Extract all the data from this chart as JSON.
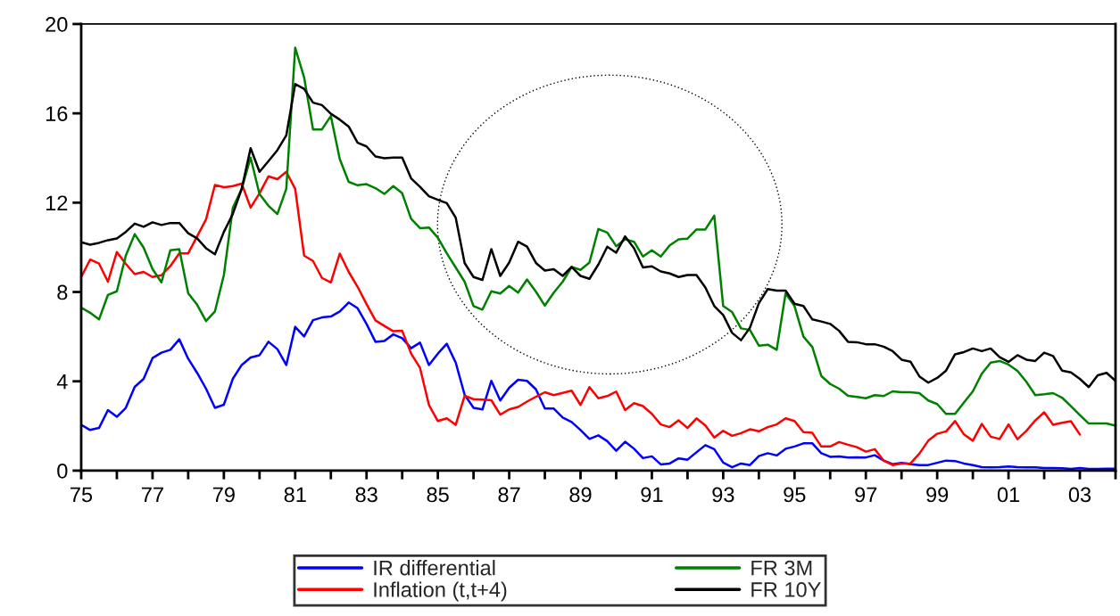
{
  "chart_data": {
    "type": "line",
    "x": [
      1975,
      1975.25,
      1975.5,
      1975.75,
      1976,
      1976.25,
      1976.5,
      1976.75,
      1977,
      1977.25,
      1977.5,
      1977.75,
      1978,
      1978.25,
      1978.5,
      1978.75,
      1979,
      1979.25,
      1979.5,
      1979.75,
      1980,
      1980.25,
      1980.5,
      1980.75,
      1981,
      1981.25,
      1981.5,
      1981.75,
      1982,
      1982.25,
      1982.5,
      1982.75,
      1983,
      1983.25,
      1983.5,
      1983.75,
      1984,
      1984.25,
      1984.5,
      1984.75,
      1985,
      1985.25,
      1985.5,
      1985.75,
      1986,
      1986.25,
      1986.5,
      1986.75,
      1987,
      1987.25,
      1987.5,
      1987.75,
      1988,
      1988.25,
      1988.5,
      1988.75,
      1989,
      1989.25,
      1989.5,
      1989.75,
      1990,
      1990.25,
      1990.5,
      1990.75,
      1991,
      1991.25,
      1991.5,
      1991.75,
      1992,
      1992.25,
      1992.5,
      1992.75,
      1993,
      1993.25,
      1993.5,
      1993.75,
      1994,
      1994.25,
      1994.5,
      1994.75,
      1995,
      1995.25,
      1995.5,
      1995.75,
      1996,
      1996.25,
      1996.5,
      1996.75,
      1997,
      1997.25,
      1997.5,
      1997.75,
      1998,
      1998.25,
      1998.5,
      1998.75,
      1999,
      1999.25,
      1999.5,
      1999.75,
      2000,
      2000.25,
      2000.5,
      2000.75,
      2001,
      2001.25,
      2001.5,
      2001.75,
      2002,
      2002.25,
      2002.5,
      2002.75,
      2003,
      2003.25,
      2003.5,
      2003.75,
      2004
    ],
    "series": [
      {
        "name": "IR differential",
        "color": "#0000ff",
        "values": [
          2.05,
          1.82,
          1.91,
          2.71,
          2.41,
          2.81,
          3.75,
          4.11,
          5.04,
          5.28,
          5.41,
          5.88,
          5.01,
          4.38,
          3.67,
          2.81,
          2.95,
          4.11,
          4.73,
          5.07,
          5.17,
          5.77,
          5.44,
          4.73,
          6.44,
          6.01,
          6.74,
          6.86,
          6.9,
          7.13,
          7.53,
          7.27,
          6.57,
          5.77,
          5.81,
          6.1,
          5.93,
          5.48,
          5.73,
          4.73,
          5.24,
          5.68,
          4.84,
          3.4,
          2.81,
          2.74,
          4.02,
          3.14,
          3.71,
          4.07,
          4.02,
          3.64,
          2.78,
          2.78,
          2.38,
          2.18,
          1.82,
          1.42,
          1.58,
          1.32,
          0.89,
          1.29,
          0.98,
          0.56,
          0.64,
          0.28,
          0.32,
          0.55,
          0.49,
          0.82,
          1.14,
          0.96,
          0.36,
          0.15,
          0.32,
          0.25,
          0.65,
          0.78,
          0.68,
          0.98,
          1.08,
          1.22,
          1.22,
          0.78,
          0.62,
          0.64,
          0.59,
          0.6,
          0.59,
          0.69,
          0.45,
          0.29,
          0.35,
          0.29,
          0.25,
          0.25,
          0.35,
          0.45,
          0.43,
          0.32,
          0.25,
          0.16,
          0.15,
          0.16,
          0.19,
          0.16,
          0.15,
          0.15,
          0.12,
          0.12,
          0.11,
          0.08,
          0.12,
          0.08,
          0.08,
          0.09,
          0.09
        ]
      },
      {
        "name": "Inflation (t,t+4)",
        "color": "#ff0000",
        "values": [
          8.67,
          9.45,
          9.27,
          8.46,
          9.79,
          9.26,
          8.8,
          8.9,
          8.67,
          8.75,
          9.16,
          9.73,
          9.73,
          10.49,
          11.25,
          12.79,
          12.69,
          12.74,
          12.85,
          11.78,
          12.42,
          13.18,
          13.05,
          13.38,
          12.62,
          9.63,
          9.39,
          8.63,
          8.43,
          9.72,
          8.9,
          8.23,
          7.46,
          6.73,
          6.48,
          6.24,
          6.26,
          5.24,
          4.6,
          2.94,
          2.22,
          2.34,
          2.05,
          3.35,
          3.2,
          3.18,
          3.15,
          2.51,
          2.74,
          2.85,
          3.09,
          3.31,
          3.51,
          3.38,
          3.48,
          3.58,
          2.94,
          3.74,
          3.24,
          3.34,
          3.54,
          2.71,
          3.02,
          2.89,
          2.54,
          2.07,
          1.95,
          2.25,
          1.91,
          2.34,
          2.02,
          1.48,
          1.78,
          1.56,
          1.68,
          1.85,
          1.76,
          1.95,
          2.07,
          2.34,
          2.22,
          1.72,
          1.69,
          1.08,
          1.08,
          1.28,
          1.16,
          1.05,
          0.85,
          0.96,
          0.45,
          0.25,
          0.32,
          0.32,
          0.76,
          1.34,
          1.65,
          1.76,
          2.22,
          1.62,
          1.34,
          2.09,
          1.52,
          1.42,
          2.07,
          1.41,
          1.78,
          2.25,
          2.61,
          2.05,
          2.14,
          2.21,
          1.62,
          null,
          null,
          null,
          null
        ]
      },
      {
        "name": "FR 3M",
        "color": "#008000",
        "values": [
          7.3,
          7.07,
          6.77,
          7.87,
          8.03,
          9.63,
          10.59,
          9.99,
          9.03,
          8.43,
          9.87,
          9.92,
          7.94,
          7.43,
          6.7,
          7.13,
          8.76,
          11.76,
          12.62,
          14.02,
          12.38,
          11.86,
          11.49,
          12.62,
          18.94,
          17.61,
          15.28,
          15.28,
          15.88,
          13.95,
          12.93,
          12.78,
          12.83,
          12.65,
          12.39,
          12.74,
          12.42,
          11.28,
          10.86,
          10.89,
          10.43,
          9.73,
          9.1,
          8.46,
          7.37,
          7.21,
          8.03,
          7.93,
          8.27,
          7.97,
          8.56,
          8.01,
          7.39,
          7.97,
          8.46,
          9.12,
          8.99,
          9.32,
          10.82,
          10.66,
          10.05,
          10.36,
          10.25,
          9.59,
          9.87,
          9.59,
          10.09,
          10.36,
          10.39,
          10.8,
          10.8,
          11.42,
          7.37,
          7.1,
          6.37,
          6.3,
          5.6,
          5.64,
          5.41,
          7.94,
          7.37,
          6.0,
          5.53,
          4.24,
          3.88,
          3.67,
          3.35,
          3.3,
          3.24,
          3.38,
          3.34,
          3.55,
          3.51,
          3.51,
          3.47,
          3.14,
          2.98,
          2.54,
          2.54,
          3.05,
          3.55,
          4.34,
          4.84,
          4.91,
          4.75,
          4.47,
          3.98,
          3.38,
          3.42,
          3.47,
          3.27,
          2.89,
          2.49,
          2.11,
          2.11,
          2.11,
          2.01
        ]
      },
      {
        "name": "FR 10Y",
        "color": "#000000",
        "values": [
          10.23,
          10.12,
          10.2,
          10.32,
          10.4,
          10.69,
          11.06,
          10.92,
          11.12,
          11.0,
          11.09,
          11.09,
          10.63,
          10.4,
          9.96,
          9.69,
          10.69,
          11.49,
          12.62,
          14.44,
          13.38,
          13.86,
          14.35,
          15.01,
          17.31,
          17.1,
          16.48,
          16.37,
          15.98,
          15.72,
          15.41,
          14.68,
          14.52,
          14.07,
          13.99,
          14.02,
          14.02,
          13.09,
          12.71,
          12.29,
          12.13,
          11.98,
          11.33,
          9.3,
          8.67,
          8.54,
          9.92,
          8.72,
          9.32,
          10.25,
          10.03,
          9.3,
          8.96,
          9.02,
          8.72,
          9.12,
          8.72,
          8.59,
          9.23,
          10.03,
          9.76,
          10.49,
          9.96,
          9.1,
          9.15,
          8.92,
          8.83,
          8.67,
          8.76,
          8.76,
          8.2,
          7.37,
          6.97,
          6.17,
          5.84,
          6.4,
          7.5,
          8.13,
          8.06,
          8.06,
          7.47,
          7.37,
          6.77,
          6.68,
          6.57,
          6.26,
          5.77,
          5.75,
          5.66,
          5.66,
          5.55,
          5.35,
          4.97,
          4.88,
          4.22,
          3.94,
          4.15,
          4.48,
          5.21,
          5.31,
          5.47,
          5.35,
          5.47,
          5.08,
          4.87,
          5.17,
          4.97,
          4.91,
          5.28,
          5.13,
          4.48,
          4.4,
          4.11,
          3.74,
          4.27,
          4.38,
          4.02
        ]
      }
    ],
    "xlim": [
      1975,
      2004
    ],
    "ylim": [
      0,
      20
    ],
    "xticks": [
      {
        "value": 1975,
        "label": "75"
      },
      {
        "value": 1976,
        "label": null
      },
      {
        "value": 1977,
        "label": "77"
      },
      {
        "value": 1978,
        "label": null
      },
      {
        "value": 1979,
        "label": "79"
      },
      {
        "value": 1980,
        "label": null
      },
      {
        "value": 1981,
        "label": "81"
      },
      {
        "value": 1982,
        "label": null
      },
      {
        "value": 1983,
        "label": "83"
      },
      {
        "value": 1984,
        "label": null
      },
      {
        "value": 1985,
        "label": "85"
      },
      {
        "value": 1986,
        "label": null
      },
      {
        "value": 1987,
        "label": "87"
      },
      {
        "value": 1988,
        "label": null
      },
      {
        "value": 1989,
        "label": "89"
      },
      {
        "value": 1990,
        "label": null
      },
      {
        "value": 1991,
        "label": "91"
      },
      {
        "value": 1992,
        "label": null
      },
      {
        "value": 1993,
        "label": "93"
      },
      {
        "value": 1994,
        "label": null
      },
      {
        "value": 1995,
        "label": "95"
      },
      {
        "value": 1996,
        "label": null
      },
      {
        "value": 1997,
        "label": "97"
      },
      {
        "value": 1998,
        "label": null
      },
      {
        "value": 1999,
        "label": "99"
      },
      {
        "value": 2000,
        "label": null
      },
      {
        "value": 2001,
        "label": "01"
      },
      {
        "value": 2002,
        "label": null
      },
      {
        "value": 2003,
        "label": "03"
      },
      {
        "value": 2004,
        "label": null
      }
    ],
    "yticks": [
      0,
      4,
      8,
      12,
      16,
      20
    ],
    "grid": false,
    "legend": "bottom",
    "marker": "none",
    "line_style": "solid"
  }
}
